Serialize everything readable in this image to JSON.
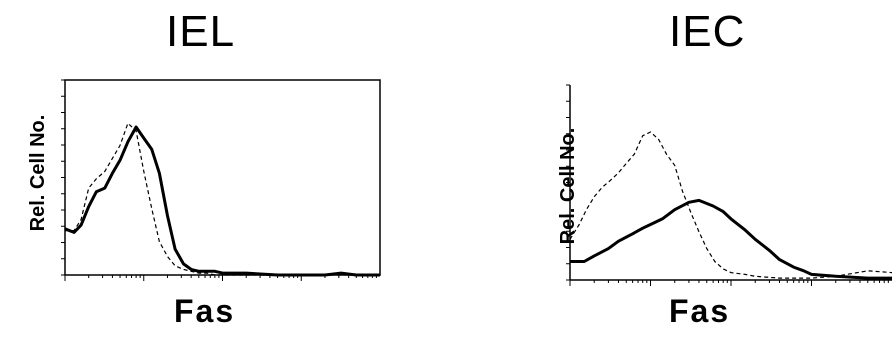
{
  "chart_data": [
    {
      "type": "line",
      "title": "IEL",
      "xlabel": "Fas",
      "ylabel": "Rel. Cell No.",
      "x_scale": "log",
      "xlim": [
        1,
        10000
      ],
      "ylim": [
        0,
        100
      ],
      "grid": false,
      "series": [
        {
          "style": "solid-thick",
          "x": [
            1,
            1.3,
            1.6,
            2,
            2.5,
            3.2,
            4,
            5,
            6.3,
            8,
            10,
            12.6,
            15.8,
            20,
            25,
            32,
            40,
            50,
            63,
            80,
            100,
            200,
            500,
            1000,
            2000,
            3200,
            5000,
            10000
          ],
          "values": [
            25,
            23,
            27,
            37,
            45,
            47,
            55,
            62,
            72,
            80,
            74,
            68,
            55,
            32,
            14,
            6,
            3,
            2,
            2,
            2,
            1,
            1,
            0,
            0,
            0,
            1,
            0,
            0
          ]
        },
        {
          "style": "dashed",
          "x": [
            1,
            1.3,
            1.6,
            2,
            2.5,
            3.2,
            4,
            5,
            6.3,
            8,
            10,
            12.6,
            15.8,
            20,
            25,
            32,
            40,
            50,
            63,
            80,
            100,
            200,
            500,
            1000,
            2000,
            5000,
            10000
          ],
          "values": [
            24,
            24,
            30,
            47,
            52,
            56,
            63,
            70,
            82,
            78,
            56,
            36,
            18,
            10,
            5,
            3,
            2,
            1,
            1,
            0,
            0,
            0,
            0,
            0,
            0,
            0,
            0
          ]
        }
      ]
    },
    {
      "type": "line",
      "title": "IEC",
      "xlabel": "Fas",
      "ylabel": "Rel. Cell No.",
      "x_scale": "log",
      "xlim": [
        1,
        10000
      ],
      "ylim": [
        0,
        100
      ],
      "grid": false,
      "series": [
        {
          "style": "solid-thick",
          "x": [
            1,
            1.5,
            2,
            3,
            4,
            6,
            8,
            10,
            14,
            20,
            30,
            40,
            60,
            80,
            100,
            150,
            200,
            300,
            400,
            600,
            800,
            1000,
            2000,
            5000,
            10000
          ],
          "values": [
            10,
            10,
            13,
            17,
            21,
            25,
            28,
            30,
            33,
            38,
            42,
            43,
            40,
            37,
            33,
            27,
            22,
            16,
            11,
            7,
            5,
            3,
            2,
            1,
            1
          ]
        },
        {
          "style": "dashed",
          "x": [
            1,
            1.3,
            1.6,
            2,
            2.5,
            3.2,
            4,
            5,
            6.3,
            8,
            10,
            12.6,
            15.8,
            20,
            25,
            32,
            40,
            50,
            63,
            80,
            100,
            150,
            200,
            400,
            1000,
            2000,
            5000,
            10000
          ],
          "values": [
            22,
            30,
            38,
            45,
            50,
            54,
            58,
            63,
            68,
            78,
            80,
            76,
            68,
            62,
            48,
            36,
            26,
            17,
            10,
            6,
            4,
            3,
            2,
            1,
            1,
            2,
            5,
            4
          ]
        }
      ]
    }
  ]
}
